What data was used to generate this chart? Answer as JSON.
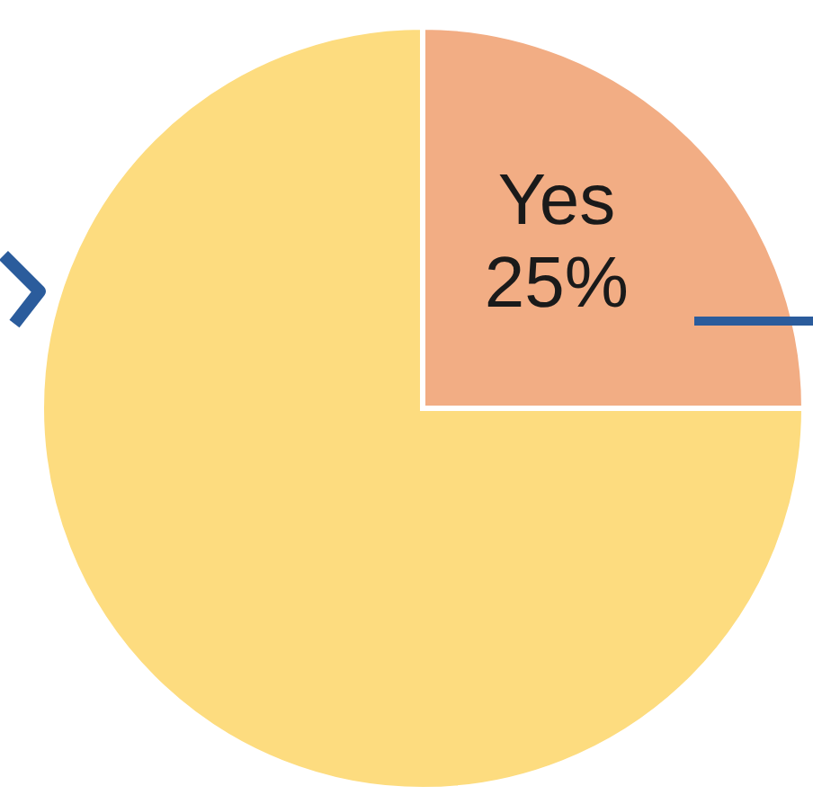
{
  "chart_data": {
    "type": "pie",
    "categories": [
      "Yes",
      null
    ],
    "values": [
      25,
      75
    ],
    "colors": [
      "#f2ad84",
      "#fddc7f"
    ],
    "value_labels": [
      "25%",
      null
    ],
    "legend": false
  }
}
